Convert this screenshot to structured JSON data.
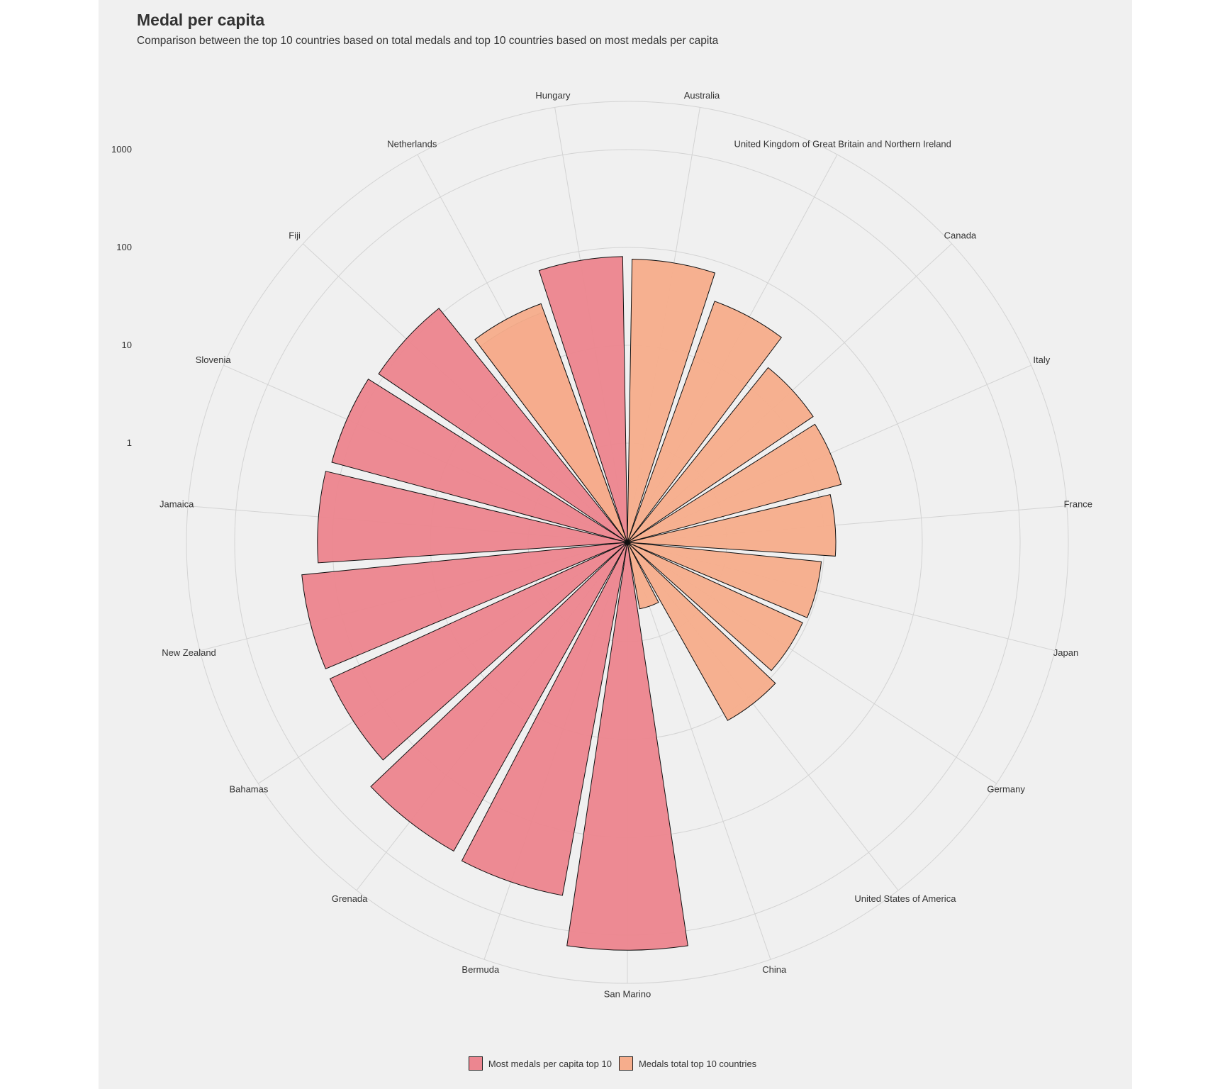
{
  "chart_data": {
    "type": "bar",
    "coord": "polar",
    "scale": "log10",
    "title": "Medal per capita",
    "subtitle": "Comparison between the top 10 countries based on total medals and top 10 countries based on most medals per capita",
    "categories": [
      "San Marino",
      "Bermuda",
      "Grenada",
      "Bahamas",
      "New Zealand",
      "Jamaica",
      "Slovenia",
      "Fiji",
      "Netherlands",
      "Hungary",
      "Australia",
      "United Kingdom of Great Britain and Northern Ireland",
      "Canada",
      "Italy",
      "France",
      "Japan",
      "Germany",
      "United States of America",
      "China"
    ],
    "series": [
      {
        "name": "Most medals per capita top 10",
        "color": "#ec8690",
        "values": [
          6000,
          1900,
          1700,
          900,
          900,
          600,
          550,
          480,
          130,
          340,
          null,
          null,
          null,
          null,
          null,
          null,
          null,
          null,
          null
        ]
      },
      {
        "name": "Medals total top 10 countries",
        "color": "#f6ad8c",
        "values": [
          null,
          null,
          null,
          null,
          null,
          null,
          null,
          null,
          160,
          null,
          320,
          170,
          80,
          75,
          55,
          40,
          38,
          50,
          2
        ]
      }
    ],
    "y_ticks": [
      "1",
      "10",
      "100",
      "1000"
    ],
    "legend_position": "bottom",
    "grid": true
  }
}
